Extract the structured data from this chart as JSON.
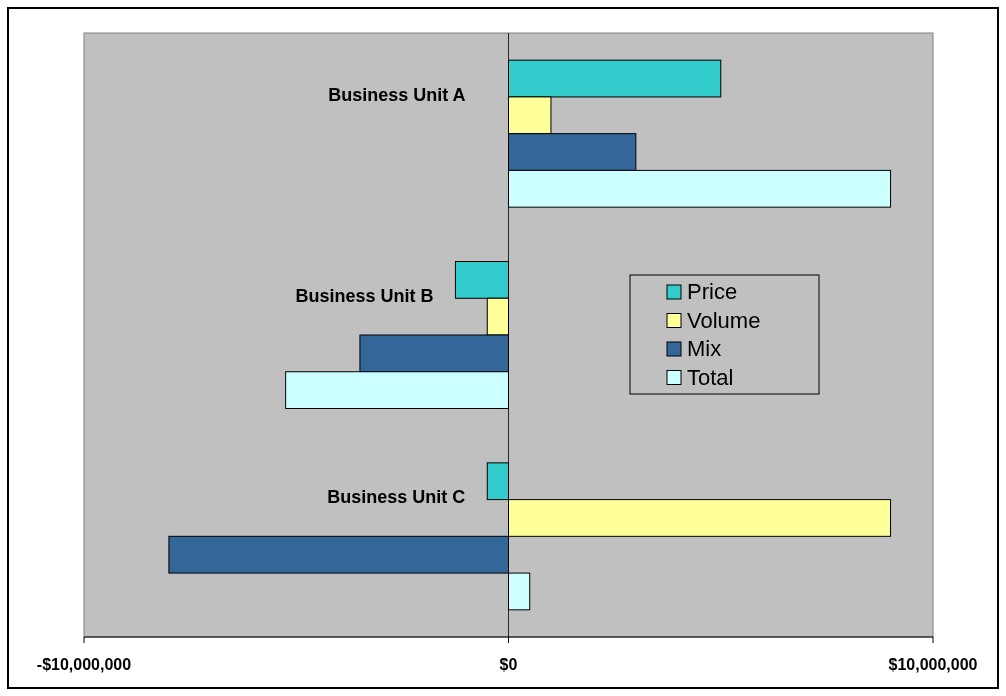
{
  "chart_data": {
    "type": "bar",
    "orientation": "horizontal",
    "categories": [
      "Business Unit A",
      "Business Unit B",
      "Business Unit C"
    ],
    "series": [
      {
        "name": "Price",
        "color": "#33cccc",
        "values": [
          5000000,
          -1250000,
          -500000
        ]
      },
      {
        "name": "Volume",
        "color": "#ffff99",
        "values": [
          1000000,
          -500000,
          9000000
        ]
      },
      {
        "name": "Mix",
        "color": "#336699",
        "values": [
          3000000,
          -3500000,
          -8000000
        ]
      },
      {
        "name": "Total",
        "color": "#ccffff",
        "values": [
          9000000,
          -5250000,
          500000
        ]
      }
    ],
    "xlim": [
      -10000000,
      10000000
    ],
    "xticks": [
      {
        "value": -10000000,
        "label": "-$10,000,000"
      },
      {
        "value": 0,
        "label": "$0"
      },
      {
        "value": 10000000,
        "label": "$10,000,000"
      }
    ],
    "legend": "right"
  }
}
